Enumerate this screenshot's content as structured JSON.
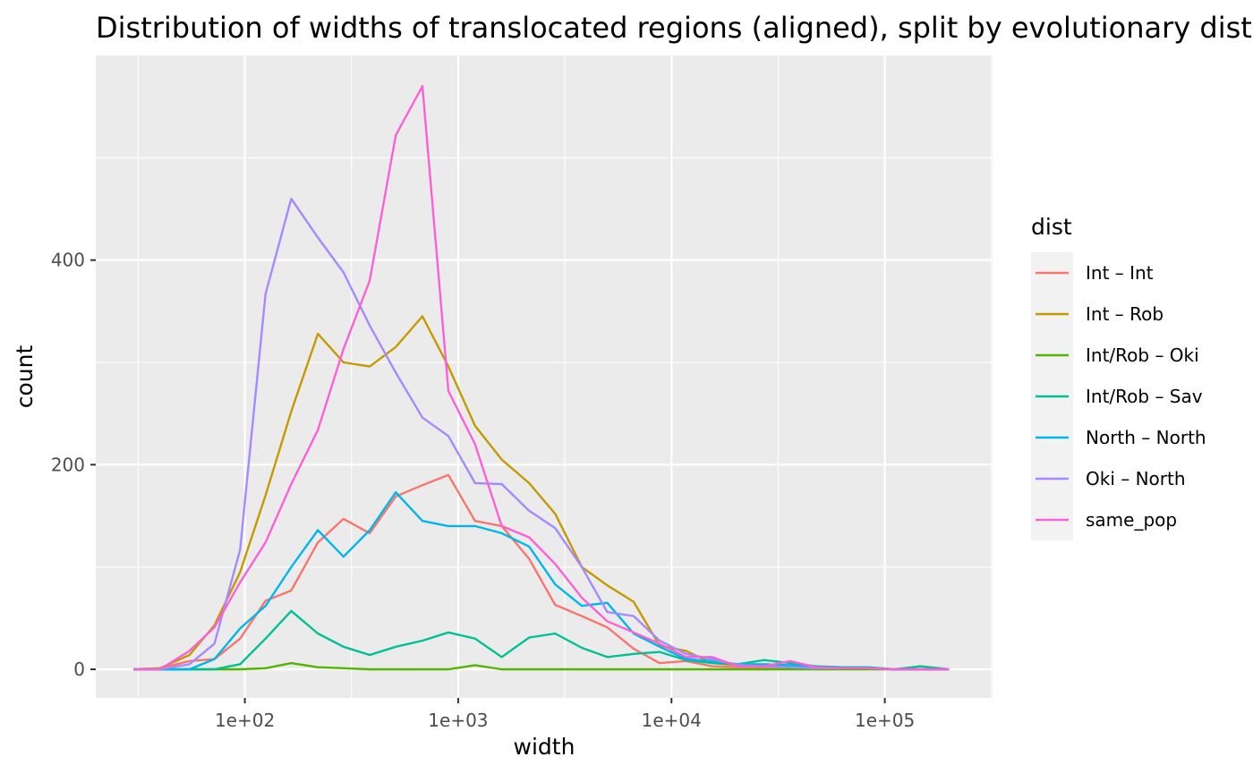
{
  "chart_data": {
    "type": "line",
    "title": "Distribution of widths of translocated regions (aligned), split by evolutionary distance",
    "xlabel": "width",
    "ylabel": "count",
    "x_scale": "log10",
    "xlim": [
      20,
      320000
    ],
    "ylim": [
      -28,
      600
    ],
    "x_ticks": [
      100,
      1000,
      10000,
      100000
    ],
    "x_tick_labels": [
      "1e+02",
      "1e+03",
      "1e+04",
      "1e+05"
    ],
    "y_ticks": [
      0,
      200,
      400
    ],
    "y_tick_labels": [
      "0",
      "200",
      "400"
    ],
    "grid": true,
    "legend": {
      "title": "dist",
      "placement": "right"
    },
    "x": [
      30,
      40,
      55,
      72,
      95,
      125,
      165,
      220,
      290,
      385,
      510,
      680,
      900,
      1200,
      1600,
      2150,
      2850,
      3800,
      5000,
      6650,
      8800,
      11700,
      15500,
      20500,
      27200,
      36000,
      47700,
      63200,
      83700,
      111000,
      147000,
      200000
    ],
    "series": [
      {
        "name": "Int – Int",
        "color": "#F8766D",
        "values": [
          0,
          1,
          8,
          10,
          30,
          67,
          77,
          124,
          147,
          133,
          169,
          180,
          190,
          145,
          140,
          108,
          63,
          52,
          41,
          20,
          6,
          8,
          3,
          2,
          2,
          2,
          1,
          1,
          1,
          0,
          0,
          0
        ]
      },
      {
        "name": "Int – Rob",
        "color": "#C49A00",
        "values": [
          0,
          1,
          14,
          43,
          95,
          170,
          252,
          328,
          300,
          296,
          315,
          345,
          296,
          238,
          205,
          182,
          152,
          100,
          82,
          66,
          23,
          18,
          6,
          4,
          3,
          2,
          1,
          1,
          1,
          0,
          0,
          0
        ]
      },
      {
        "name": "Int/Rob – Oki",
        "color": "#53B400",
        "values": [
          0,
          0,
          0,
          0,
          0,
          1,
          6,
          2,
          1,
          0,
          0,
          0,
          0,
          4,
          0,
          0,
          0,
          0,
          0,
          0,
          0,
          0,
          0,
          0,
          0,
          0,
          0,
          0,
          0,
          0,
          0,
          0
        ]
      },
      {
        "name": "Int/Rob – Sav",
        "color": "#00C094",
        "values": [
          0,
          0,
          0,
          0,
          5,
          30,
          57,
          35,
          22,
          14,
          22,
          28,
          36,
          30,
          12,
          31,
          35,
          21,
          12,
          15,
          17,
          9,
          6,
          5,
          9,
          6,
          3,
          2,
          2,
          0,
          3,
          0
        ]
      },
      {
        "name": "North – North",
        "color": "#00B6EB",
        "values": [
          0,
          0,
          0,
          10,
          40,
          62,
          100,
          136,
          110,
          136,
          173,
          145,
          140,
          140,
          133,
          120,
          83,
          62,
          65,
          35,
          22,
          10,
          8,
          5,
          5,
          4,
          2,
          1,
          1,
          0,
          0,
          0
        ]
      },
      {
        "name": "Oki – North",
        "color": "#A58AFF",
        "values": [
          0,
          0,
          5,
          25,
          117,
          367,
          460,
          422,
          388,
          336,
          290,
          246,
          228,
          182,
          181,
          155,
          138,
          100,
          56,
          52,
          28,
          15,
          10,
          4,
          3,
          2,
          1,
          1,
          1,
          0,
          0,
          0
        ]
      },
      {
        "name": "same_pop",
        "color": "#FB61D7",
        "values": [
          0,
          0,
          18,
          41,
          85,
          124,
          181,
          234,
          313,
          380,
          522,
          570,
          272,
          220,
          140,
          129,
          103,
          70,
          47,
          36,
          25,
          12,
          12,
          3,
          3,
          8,
          2,
          1,
          1,
          0,
          0,
          0
        ]
      }
    ]
  }
}
